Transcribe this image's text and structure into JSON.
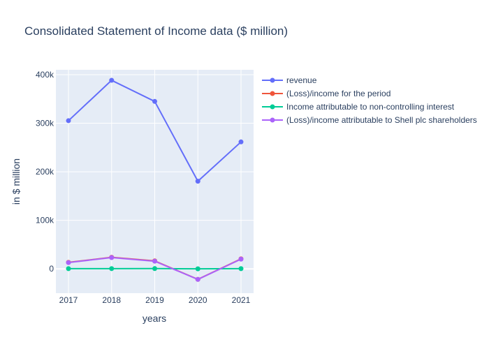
{
  "chart_data": {
    "type": "line",
    "title": "Consolidated Statement of Income data ($ million)",
    "xlabel": "years",
    "ylabel": "in $ million",
    "categories": [
      "2017",
      "2018",
      "2019",
      "2020",
      "2021"
    ],
    "ylim": [
      -50000,
      410000
    ],
    "yticks": [
      0,
      100000,
      200000,
      300000,
      400000
    ],
    "ytick_labels": [
      "0",
      "100k",
      "200k",
      "300k",
      "400k"
    ],
    "grid": true,
    "legend_position": "top-right",
    "series": [
      {
        "name": "revenue",
        "color": "#636efa",
        "values": [
          305179,
          388379,
          344877,
          180543,
          261504
        ]
      },
      {
        "name": "(Loss)/income for the period",
        "color": "#ef553b",
        "values": [
          13435,
          23906,
          16432,
          -21534,
          20630
        ]
      },
      {
        "name": "Income attributable to non-controlling interest",
        "color": "#00cc96",
        "values": [
          458,
          554,
          590,
          146,
          529
        ]
      },
      {
        "name": "(Loss)/income attributable to Shell plc shareholders",
        "color": "#ab63fa",
        "values": [
          12977,
          23352,
          15842,
          -21680,
          20101
        ]
      }
    ]
  }
}
